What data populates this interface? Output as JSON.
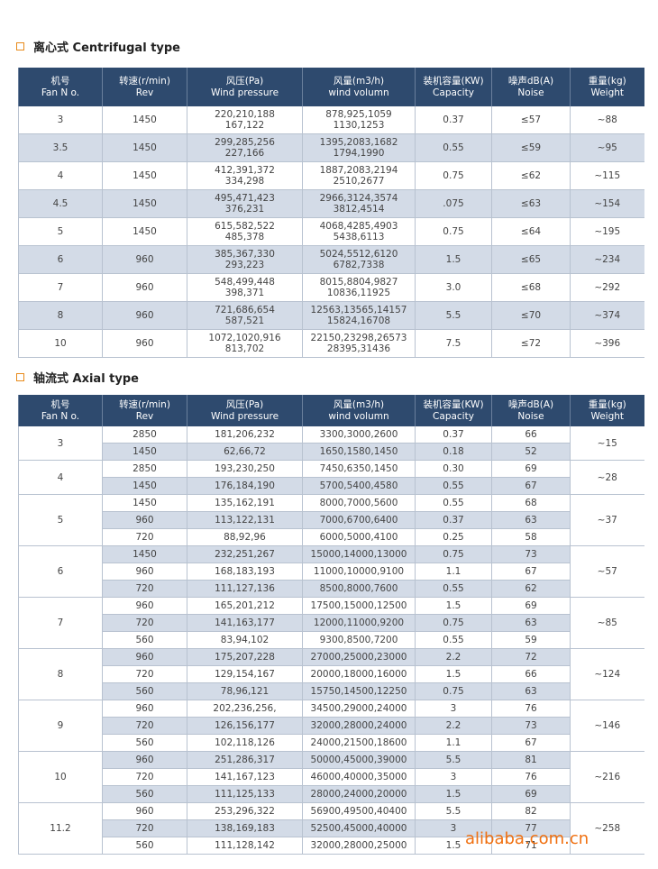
{
  "sections": [
    {
      "title": "离心式 Centrifugal type",
      "headers": [
        [
          "机号",
          "Fan N o."
        ],
        [
          "转速(r/min)",
          "Rev"
        ],
        [
          "风压(Pa)",
          "Wind pressure"
        ],
        [
          "风量(m3/h)",
          "wind volumn"
        ],
        [
          "装机容量(KW)",
          "Capacity"
        ],
        [
          "噪声dB(A)",
          "Noise"
        ],
        [
          "重量(kg)",
          "Weight"
        ]
      ],
      "rows": [
        [
          "3",
          "1450",
          [
            "220,210,188",
            "167,122"
          ],
          [
            "878,925,1059",
            "1130,1253"
          ],
          "0.37",
          "≤57",
          "~88"
        ],
        [
          "3.5",
          "1450",
          [
            "299,285,256",
            "227,166"
          ],
          [
            "1395,2083,1682",
            "1794,1990"
          ],
          "0.55",
          "≤59",
          "~95"
        ],
        [
          "4",
          "1450",
          [
            "412,391,372",
            "334,298"
          ],
          [
            "1887,2083,2194",
            "2510,2677"
          ],
          "0.75",
          "≤62",
          "~115"
        ],
        [
          "4.5",
          "1450",
          [
            "495,471,423",
            "376,231"
          ],
          [
            "2966,3124,3574",
            "3812,4514"
          ],
          ".075",
          "≤63",
          "~154"
        ],
        [
          "5",
          "1450",
          [
            "615,582,522",
            "485,378"
          ],
          [
            "4068,4285,4903",
            "5438,6113"
          ],
          "0.75",
          "≤64",
          "~195"
        ],
        [
          "6",
          "960",
          [
            "385,367,330",
            "293,223"
          ],
          [
            "5024,5512,6120",
            "6782,7338"
          ],
          "1.5",
          "≤65",
          "~234"
        ],
        [
          "7",
          "960",
          [
            "548,499,448",
            "398,371"
          ],
          [
            "8015,8804,9827",
            "10836,11925"
          ],
          "3.0",
          "≤68",
          "~292"
        ],
        [
          "8",
          "960",
          [
            "721,686,654",
            "587,521"
          ],
          [
            "12563,13565,14157",
            "15824,16708"
          ],
          "5.5",
          "≤70",
          "~374"
        ],
        [
          "10",
          "960",
          [
            "1072,1020,916",
            "813,702"
          ],
          [
            "22150,23298,26573",
            "28395,31436"
          ],
          "7.5",
          "≤72",
          "~396"
        ]
      ]
    },
    {
      "title": "轴流式 Axial type",
      "headers": [
        [
          "机号",
          "Fan N o."
        ],
        [
          "转速(r/min)",
          "Rev"
        ],
        [
          "风压(Pa)",
          "Wind pressure"
        ],
        [
          "风量(m3/h)",
          "wind volumn"
        ],
        [
          "装机容量(KW)",
          "Capacity"
        ],
        [
          "噪声dB(A)",
          "Noise"
        ],
        [
          "重量(kg)",
          "Weight"
        ]
      ],
      "groups": [
        {
          "fan": "3",
          "weight": "~15",
          "rows": [
            [
              "2850",
              "181,206,232",
              "3300,3000,2600",
              "0.37",
              "66"
            ],
            [
              "1450",
              "62,66,72",
              "1650,1580,1450",
              "0.18",
              "52"
            ]
          ]
        },
        {
          "fan": "4",
          "weight": "~28",
          "rows": [
            [
              "2850",
              "193,230,250",
              "7450,6350,1450",
              "0.30",
              "69"
            ],
            [
              "1450",
              "176,184,190",
              "5700,5400,4580",
              "0.55",
              "67"
            ]
          ]
        },
        {
          "fan": "5",
          "weight": "~37",
          "rows": [
            [
              "1450",
              "135,162,191",
              "8000,7000,5600",
              "0.55",
              "68"
            ],
            [
              "960",
              "113,122,131",
              "7000,6700,6400",
              "0.37",
              "63"
            ],
            [
              "720",
              "88,92,96",
              "6000,5000,4100",
              "0.25",
              "58"
            ]
          ]
        },
        {
          "fan": "6",
          "weight": "~57",
          "rows": [
            [
              "1450",
              "232,251,267",
              "15000,14000,13000",
              "0.75",
              "73"
            ],
            [
              "960",
              "168,183,193",
              "11000,10000,9100",
              "1.1",
              "67"
            ],
            [
              "720",
              "111,127,136",
              "8500,8000,7600",
              "0.55",
              "62"
            ]
          ]
        },
        {
          "fan": "7",
          "weight": "~85",
          "rows": [
            [
              "960",
              "165,201,212",
              "17500,15000,12500",
              "1.5",
              "69"
            ],
            [
              "720",
              "141,163,177",
              "12000,11000,9200",
              "0.75",
              "63"
            ],
            [
              "560",
              "83,94,102",
              "9300,8500,7200",
              "0.55",
              "59"
            ]
          ]
        },
        {
          "fan": "8",
          "weight": "~124",
          "rows": [
            [
              "960",
              "175,207,228",
              "27000,25000,23000",
              "2.2",
              "72"
            ],
            [
              "720",
              "129,154,167",
              "20000,18000,16000",
              "1.5",
              "66"
            ],
            [
              "560",
              "78,96,121",
              "15750,14500,12250",
              "0.75",
              "63"
            ]
          ]
        },
        {
          "fan": "9",
          "weight": "~146",
          "rows": [
            [
              "960",
              "202,236,256,",
              "34500,29000,24000",
              "3",
              "76"
            ],
            [
              "720",
              "126,156,177",
              "32000,28000,24000",
              "2.2",
              "73"
            ],
            [
              "560",
              "102,118,126",
              "24000,21500,18600",
              "1.1",
              "67"
            ]
          ]
        },
        {
          "fan": "10",
          "weight": "~216",
          "rows": [
            [
              "960",
              "251,286,317",
              "50000,45000,39000",
              "5.5",
              "81"
            ],
            [
              "720",
              "141,167,123",
              "46000,40000,35000",
              "3",
              "76"
            ],
            [
              "560",
              "111,125,133",
              "28000,24000,20000",
              "1.5",
              "69"
            ]
          ]
        },
        {
          "fan": "11.2",
          "weight": "~258",
          "rows": [
            [
              "960",
              "253,296,322",
              "56900,49500,40400",
              "5.5",
              "82"
            ],
            [
              "720",
              "138,169,183",
              "52500,45000,40000",
              "3",
              "77"
            ],
            [
              "560",
              "111,128,142",
              "32000,28000,25000",
              "1.5",
              "71"
            ]
          ]
        }
      ]
    }
  ],
  "watermark": "alibaba.com.cn"
}
